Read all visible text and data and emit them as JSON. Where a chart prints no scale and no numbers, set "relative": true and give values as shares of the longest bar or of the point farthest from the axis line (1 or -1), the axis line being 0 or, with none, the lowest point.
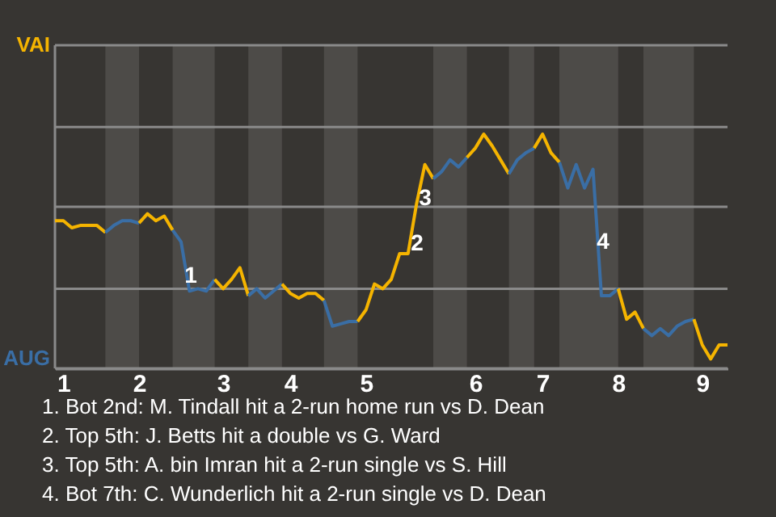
{
  "chart_data": {
    "type": "line",
    "relative": true,
    "categories": [
      null,
      "1",
      null,
      null,
      null,
      null,
      null,
      null,
      null,
      null,
      "2",
      null,
      null,
      null,
      null,
      null,
      null,
      null,
      null,
      null,
      "3",
      null,
      null,
      null,
      null,
      null,
      null,
      null,
      "4",
      null,
      null,
      null,
      null,
      null,
      null,
      null,
      null,
      "5",
      null,
      null,
      null,
      null,
      null,
      null,
      null,
      null,
      null,
      null,
      null,
      null,
      "6",
      null,
      null,
      null,
      null,
      null,
      null,
      null,
      "7",
      null,
      null,
      null,
      null,
      null,
      null,
      null,
      null,
      "8",
      null,
      null,
      null,
      null,
      null,
      null,
      null,
      null,
      null,
      "9",
      null,
      null,
      null
    ],
    "marker": "none",
    "line_style": "solid",
    "ref_lines": [
      {
        "axis": "y",
        "value": 0.34,
        "color": "#8a8a8a"
      },
      {
        "axis": "y",
        "value": 0.69,
        "color": "#8a8a8a"
      },
      {
        "axis": "y",
        "value": 1.03,
        "color": "#8a8a8a"
      }
    ],
    "series": [
      {
        "color": "#f5b400",
        "values": [
          0.63,
          0.63,
          0.6,
          0.61,
          0.61,
          0.61,
          0.58,
          null,
          null,
          null,
          null,
          null,
          null,
          null,
          null,
          null,
          null,
          null,
          null,
          null,
          null,
          null,
          null,
          null,
          null,
          null,
          null,
          null,
          null,
          null,
          null,
          null,
          null,
          null,
          null,
          null,
          null,
          null,
          null,
          null,
          null,
          null,
          null,
          null,
          null,
          null,
          null,
          null,
          null,
          null,
          null,
          null,
          null,
          null,
          null,
          null,
          null,
          null,
          null,
          null,
          null,
          null,
          null,
          null,
          null,
          null,
          null,
          null,
          null,
          null,
          null,
          null,
          null,
          null,
          null,
          null,
          null,
          null,
          null,
          null,
          null
        ]
      },
      {
        "color": "#3a6ea5",
        "values": [
          null,
          null,
          null,
          null,
          null,
          null,
          0.58,
          0.61,
          0.63,
          0.63,
          0.62,
          null,
          null,
          null,
          null,
          null,
          null,
          null,
          null,
          null,
          null,
          null,
          null,
          null,
          null,
          null,
          null,
          null,
          null,
          null,
          null,
          null,
          null,
          null,
          null,
          null,
          null,
          null,
          null,
          null,
          null,
          null,
          null,
          null,
          null,
          null,
          null,
          null,
          null,
          null,
          null,
          null,
          null,
          null,
          null,
          null,
          null,
          null,
          null,
          null,
          null,
          null,
          null,
          null,
          null,
          null,
          null,
          null,
          null,
          null,
          null,
          null,
          null,
          null,
          null,
          null,
          null,
          null,
          null,
          null,
          null
        ]
      },
      {
        "color": "#f5b400",
        "values": [
          null,
          null,
          null,
          null,
          null,
          null,
          null,
          null,
          null,
          null,
          0.62,
          0.66,
          0.63,
          0.65,
          0.59,
          null,
          null,
          null,
          null,
          null,
          null,
          null,
          null,
          null,
          null,
          null,
          null,
          null,
          null,
          null,
          null,
          null,
          null,
          null,
          null,
          null,
          null,
          null,
          null,
          null,
          null,
          null,
          null,
          null,
          null,
          null,
          null,
          null,
          null,
          null,
          null,
          null,
          null,
          null,
          null,
          null,
          null,
          null,
          null,
          null,
          null,
          null,
          null,
          null,
          null,
          null,
          null,
          null,
          null,
          null,
          null,
          null,
          null,
          null,
          null,
          null,
          null,
          null,
          null,
          null,
          null
        ]
      },
      {
        "color": "#3a6ea5",
        "values": [
          null,
          null,
          null,
          null,
          null,
          null,
          null,
          null,
          null,
          null,
          null,
          null,
          null,
          null,
          0.59,
          0.54,
          0.33,
          0.34,
          0.33,
          0.38,
          null,
          null,
          null,
          null,
          null,
          null,
          null,
          null,
          null,
          null,
          null,
          null,
          null,
          null,
          null,
          null,
          null,
          null,
          null,
          null,
          null,
          null,
          null,
          null,
          null,
          null,
          null,
          null,
          null,
          null,
          null,
          null,
          null,
          null,
          null,
          null,
          null,
          null,
          null,
          null,
          null,
          null,
          null,
          null,
          null,
          null,
          null,
          null,
          null,
          null,
          null,
          null,
          null,
          null,
          null,
          null,
          null,
          null,
          null,
          null,
          null
        ]
      },
      {
        "color": "#f5b400",
        "values": [
          null,
          null,
          null,
          null,
          null,
          null,
          null,
          null,
          null,
          null,
          null,
          null,
          null,
          null,
          null,
          null,
          null,
          null,
          null,
          0.38,
          0.34,
          0.38,
          0.43,
          0.31,
          null,
          null,
          null,
          null,
          null,
          null,
          null,
          null,
          null,
          null,
          null,
          null,
          null,
          null,
          null,
          null,
          null,
          null,
          null,
          null,
          null,
          null,
          null,
          null,
          null,
          null,
          null,
          null,
          null,
          null,
          null,
          null,
          null,
          null,
          null,
          null,
          null,
          null,
          null,
          null,
          null,
          null,
          null,
          null,
          null,
          null,
          null,
          null,
          null,
          null,
          null,
          null,
          null,
          null,
          null,
          null,
          null
        ]
      },
      {
        "color": "#3a6ea5",
        "values": [
          null,
          null,
          null,
          null,
          null,
          null,
          null,
          null,
          null,
          null,
          null,
          null,
          null,
          null,
          null,
          null,
          null,
          null,
          null,
          null,
          null,
          null,
          null,
          0.31,
          0.34,
          0.3,
          0.33,
          0.36,
          null,
          null,
          null,
          null,
          null,
          null,
          null,
          null,
          null,
          null,
          null,
          null,
          null,
          null,
          null,
          null,
          null,
          null,
          null,
          null,
          null,
          null,
          null,
          null,
          null,
          null,
          null,
          null,
          null,
          null,
          null,
          null,
          null,
          null,
          null,
          null,
          null,
          null,
          null,
          null,
          null,
          null,
          null,
          null,
          null,
          null,
          null,
          null,
          null,
          null,
          null,
          null,
          null
        ]
      },
      {
        "color": "#f5b400",
        "values": [
          null,
          null,
          null,
          null,
          null,
          null,
          null,
          null,
          null,
          null,
          null,
          null,
          null,
          null,
          null,
          null,
          null,
          null,
          null,
          null,
          null,
          null,
          null,
          null,
          null,
          null,
          null,
          0.36,
          0.32,
          0.3,
          0.32,
          0.32,
          0.29,
          null,
          null,
          null,
          null,
          null,
          null,
          null,
          null,
          null,
          null,
          null,
          null,
          null,
          null,
          null,
          null,
          null,
          null,
          null,
          null,
          null,
          null,
          null,
          null,
          null,
          null,
          null,
          null,
          null,
          null,
          null,
          null,
          null,
          null,
          null,
          null,
          null,
          null,
          null,
          null,
          null,
          null,
          null,
          null,
          null,
          null,
          null,
          null
        ]
      },
      {
        "color": "#3a6ea5",
        "values": [
          null,
          null,
          null,
          null,
          null,
          null,
          null,
          null,
          null,
          null,
          null,
          null,
          null,
          null,
          null,
          null,
          null,
          null,
          null,
          null,
          null,
          null,
          null,
          null,
          null,
          null,
          null,
          null,
          null,
          null,
          null,
          null,
          0.29,
          0.18,
          0.19,
          0.2,
          0.2,
          null,
          null,
          null,
          null,
          null,
          null,
          null,
          null,
          null,
          null,
          null,
          null,
          null,
          null,
          null,
          null,
          null,
          null,
          null,
          null,
          null,
          null,
          null,
          null,
          null,
          null,
          null,
          null,
          null,
          null,
          null,
          null,
          null,
          null,
          null,
          null,
          null,
          null,
          null,
          null,
          null,
          null,
          null,
          null
        ]
      },
      {
        "color": "#f5b400",
        "values": [
          null,
          null,
          null,
          null,
          null,
          null,
          null,
          null,
          null,
          null,
          null,
          null,
          null,
          null,
          null,
          null,
          null,
          null,
          null,
          null,
          null,
          null,
          null,
          null,
          null,
          null,
          null,
          null,
          null,
          null,
          null,
          null,
          null,
          null,
          null,
          null,
          0.2,
          0.25,
          0.36,
          0.34,
          0.38,
          0.49,
          0.49,
          0.7,
          0.87,
          0.81,
          null,
          null,
          null,
          null,
          null,
          null,
          null,
          null,
          null,
          null,
          null,
          null,
          null,
          null,
          null,
          null,
          null,
          null,
          null,
          null,
          null,
          null,
          null,
          null,
          null,
          null,
          null,
          null,
          null,
          null,
          null,
          null,
          null,
          null,
          null
        ]
      },
      {
        "color": "#3a6ea5",
        "values": [
          null,
          null,
          null,
          null,
          null,
          null,
          null,
          null,
          null,
          null,
          null,
          null,
          null,
          null,
          null,
          null,
          null,
          null,
          null,
          null,
          null,
          null,
          null,
          null,
          null,
          null,
          null,
          null,
          null,
          null,
          null,
          null,
          null,
          null,
          null,
          null,
          null,
          null,
          null,
          null,
          null,
          null,
          null,
          null,
          null,
          0.81,
          0.84,
          0.89,
          0.86,
          0.9,
          null,
          null,
          null,
          null,
          null,
          null,
          null,
          null,
          null,
          null,
          null,
          null,
          null,
          null,
          null,
          null,
          null,
          null,
          null,
          null,
          null,
          null,
          null,
          null,
          null,
          null,
          null,
          null,
          null,
          null,
          null
        ]
      },
      {
        "color": "#f5b400",
        "values": [
          null,
          null,
          null,
          null,
          null,
          null,
          null,
          null,
          null,
          null,
          null,
          null,
          null,
          null,
          null,
          null,
          null,
          null,
          null,
          null,
          null,
          null,
          null,
          null,
          null,
          null,
          null,
          null,
          null,
          null,
          null,
          null,
          null,
          null,
          null,
          null,
          null,
          null,
          null,
          null,
          null,
          null,
          null,
          null,
          null,
          null,
          null,
          null,
          null,
          0.9,
          0.94,
          1,
          0.95,
          0.89,
          0.83,
          null,
          null,
          null,
          null,
          null,
          null,
          null,
          null,
          null,
          null,
          null,
          null,
          null,
          null,
          null,
          null,
          null,
          null,
          null,
          null,
          null,
          null,
          null,
          null,
          null,
          null
        ]
      },
      {
        "color": "#3a6ea5",
        "values": [
          null,
          null,
          null,
          null,
          null,
          null,
          null,
          null,
          null,
          null,
          null,
          null,
          null,
          null,
          null,
          null,
          null,
          null,
          null,
          null,
          null,
          null,
          null,
          null,
          null,
          null,
          null,
          null,
          null,
          null,
          null,
          null,
          null,
          null,
          null,
          null,
          null,
          null,
          null,
          null,
          null,
          null,
          null,
          null,
          null,
          null,
          null,
          null,
          null,
          null,
          null,
          null,
          null,
          null,
          0.83,
          0.89,
          0.92,
          0.94,
          null,
          null,
          null,
          null,
          null,
          null,
          null,
          null,
          null,
          null,
          null,
          null,
          null,
          null,
          null,
          null,
          null,
          null,
          null,
          null,
          null,
          null,
          null
        ]
      },
      {
        "color": "#f5b400",
        "values": [
          null,
          null,
          null,
          null,
          null,
          null,
          null,
          null,
          null,
          null,
          null,
          null,
          null,
          null,
          null,
          null,
          null,
          null,
          null,
          null,
          null,
          null,
          null,
          null,
          null,
          null,
          null,
          null,
          null,
          null,
          null,
          null,
          null,
          null,
          null,
          null,
          null,
          null,
          null,
          null,
          null,
          null,
          null,
          null,
          null,
          null,
          null,
          null,
          null,
          null,
          null,
          null,
          null,
          null,
          null,
          null,
          null,
          0.94,
          1,
          0.92,
          0.88,
          null,
          null,
          null,
          null,
          null,
          null,
          null,
          null,
          null,
          null,
          null,
          null,
          null,
          null,
          null,
          null,
          null,
          null,
          null,
          null
        ]
      },
      {
        "color": "#3a6ea5",
        "values": [
          null,
          null,
          null,
          null,
          null,
          null,
          null,
          null,
          null,
          null,
          null,
          null,
          null,
          null,
          null,
          null,
          null,
          null,
          null,
          null,
          null,
          null,
          null,
          null,
          null,
          null,
          null,
          null,
          null,
          null,
          null,
          null,
          null,
          null,
          null,
          null,
          null,
          null,
          null,
          null,
          null,
          null,
          null,
          null,
          null,
          null,
          null,
          null,
          null,
          null,
          null,
          null,
          null,
          null,
          null,
          null,
          null,
          null,
          null,
          null,
          0.88,
          0.77,
          0.87,
          0.77,
          0.85,
          0.31,
          0.31,
          0.34,
          null,
          null,
          null,
          null,
          null,
          null,
          null,
          null,
          null,
          null,
          null,
          null,
          null
        ]
      },
      {
        "color": "#f5b400",
        "values": [
          null,
          null,
          null,
          null,
          null,
          null,
          null,
          null,
          null,
          null,
          null,
          null,
          null,
          null,
          null,
          null,
          null,
          null,
          null,
          null,
          null,
          null,
          null,
          null,
          null,
          null,
          null,
          null,
          null,
          null,
          null,
          null,
          null,
          null,
          null,
          null,
          null,
          null,
          null,
          null,
          null,
          null,
          null,
          null,
          null,
          null,
          null,
          null,
          null,
          null,
          null,
          null,
          null,
          null,
          null,
          null,
          null,
          null,
          null,
          null,
          null,
          null,
          null,
          null,
          null,
          null,
          null,
          0.34,
          0.21,
          0.24,
          0.17,
          null,
          null,
          null,
          null,
          null,
          null,
          null,
          null,
          null,
          null
        ]
      },
      {
        "color": "#3a6ea5",
        "values": [
          null,
          null,
          null,
          null,
          null,
          null,
          null,
          null,
          null,
          null,
          null,
          null,
          null,
          null,
          null,
          null,
          null,
          null,
          null,
          null,
          null,
          null,
          null,
          null,
          null,
          null,
          null,
          null,
          null,
          null,
          null,
          null,
          null,
          null,
          null,
          null,
          null,
          null,
          null,
          null,
          null,
          null,
          null,
          null,
          null,
          null,
          null,
          null,
          null,
          null,
          null,
          null,
          null,
          null,
          null,
          null,
          null,
          null,
          null,
          null,
          null,
          null,
          null,
          null,
          null,
          null,
          null,
          null,
          null,
          null,
          0.17,
          0.14,
          0.17,
          0.14,
          0.18,
          0.2,
          0.21,
          null,
          null,
          null,
          null
        ]
      },
      {
        "color": "#f5b400",
        "values": [
          null,
          null,
          null,
          null,
          null,
          null,
          null,
          null,
          null,
          null,
          null,
          null,
          null,
          null,
          null,
          null,
          null,
          null,
          null,
          null,
          null,
          null,
          null,
          null,
          null,
          null,
          null,
          null,
          null,
          null,
          null,
          null,
          null,
          null,
          null,
          null,
          null,
          null,
          null,
          null,
          null,
          null,
          null,
          null,
          null,
          null,
          null,
          null,
          null,
          null,
          null,
          null,
          null,
          null,
          null,
          null,
          null,
          null,
          null,
          null,
          null,
          null,
          null,
          null,
          null,
          null,
          null,
          null,
          null,
          null,
          null,
          null,
          null,
          null,
          null,
          null,
          0.21,
          0.1,
          0.04,
          0.1,
          0.1
        ]
      }
    ],
    "annotations": [
      "VAI",
      "AUG",
      "1",
      "2",
      "3",
      "4",
      "1. Bot 2nd: M. Tindall hit a 2-run home run vs D. Dean",
      "2. Top 5th: J. Betts hit a double vs G. Ward",
      "3. Top 5th: A. bin Imran hit a 2-run single vs S. Hill",
      "4. Bot 7th: C. Wunderlich hit a 2-run single vs D. Dean"
    ]
  }
}
